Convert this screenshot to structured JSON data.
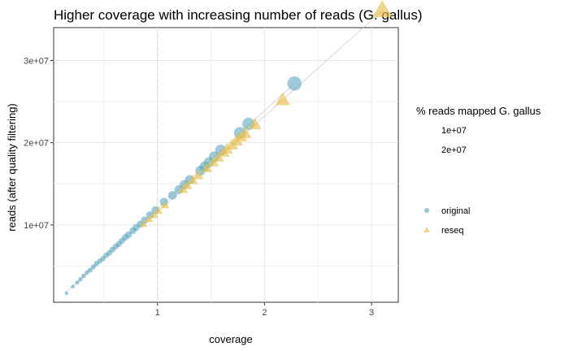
{
  "chart_data": {
    "type": "scatter",
    "title": "Higher coverage with increasing number of reads (G. gallus)",
    "xlabel": "coverage",
    "ylabel": "reads (after quality filtering)",
    "xlim": [
      0.03,
      3.25
    ],
    "ylim": [
      600000,
      34000000
    ],
    "xticks": [
      1,
      2,
      3
    ],
    "xtick_labels": [
      "1",
      "2",
      "3"
    ],
    "yticks": [
      10000000,
      20000000,
      30000000
    ],
    "ytick_labels": [
      "1e+07",
      "2e+07",
      "3e+07"
    ],
    "grid": true,
    "legend_placement": "right",
    "size_legend": {
      "title": "% reads mapped G. gallus",
      "entries": [
        "1e+07",
        "2e+07"
      ]
    },
    "series": [
      {
        "name": "original",
        "color": "#4fa0bd",
        "marker": "circle",
        "x": [
          0.15,
          0.21,
          0.25,
          0.28,
          0.31,
          0.34,
          0.37,
          0.4,
          0.43,
          0.46,
          0.49,
          0.52,
          0.55,
          0.58,
          0.61,
          0.64,
          0.67,
          0.7,
          0.73,
          0.77,
          0.8,
          0.84,
          0.88,
          0.93,
          0.98,
          1.06,
          1.14,
          1.2,
          1.25,
          1.3,
          1.4,
          1.44,
          1.48,
          1.53,
          1.59,
          1.77,
          1.85,
          2.28
        ],
        "y": [
          1700000,
          2500000,
          3000000,
          3400000,
          3800000,
          4200000,
          4500000,
          4900000,
          5300000,
          5600000,
          5900000,
          6300000,
          6600000,
          7000000,
          7400000,
          7700000,
          8100000,
          8500000,
          8800000,
          9300000,
          9700000,
          10100000,
          10600000,
          11200000,
          11800000,
          12800000,
          13600000,
          14300000,
          14900000,
          15500000,
          16600000,
          17100000,
          17600000,
          18300000,
          19100000,
          21200000,
          22300000,
          27200000
        ]
      },
      {
        "name": "reseq",
        "color": "#e8c04c",
        "marker": "triangle",
        "x": [
          0.87,
          0.92,
          0.97,
          1.01,
          1.07,
          1.24,
          1.28,
          1.33,
          1.38,
          1.46,
          1.52,
          1.57,
          1.62,
          1.65,
          1.7,
          1.74,
          1.78,
          1.82,
          1.91,
          2.17,
          3.1
        ],
        "y": [
          10100000,
          10700000,
          11200000,
          11700000,
          12400000,
          14300000,
          14800000,
          15400000,
          16000000,
          16900000,
          17600000,
          18200000,
          18800000,
          19200000,
          19700000,
          20200000,
          20700000,
          21100000,
          22200000,
          25200000,
          36100000
        ]
      }
    ]
  }
}
